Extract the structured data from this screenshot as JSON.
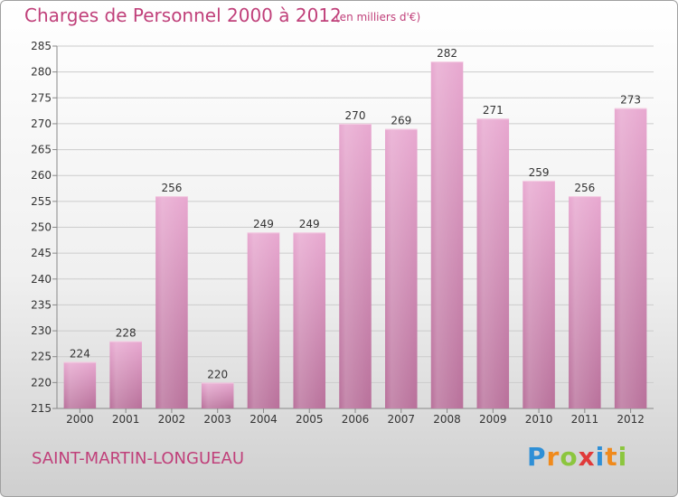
{
  "title": "Charges de Personnel 2000 à 2012",
  "subtitle": "(en milliers d'€)",
  "location": "SAINT-MARTIN-LONGUEAU",
  "logo": {
    "letters": [
      "P",
      "r",
      "o",
      "x",
      "i",
      "t",
      "i"
    ],
    "colors": [
      "#2e8fd6",
      "#f08a1c",
      "#8cc63e",
      "#e03a3a",
      "#2e8fd6",
      "#f08a1c",
      "#8cc63e"
    ]
  },
  "colors": {
    "accent": "#c0407a",
    "bar_top": "#e8a8d0",
    "bar_bottom": "#b8709a",
    "grid": "#cccccc"
  },
  "chart_data": {
    "type": "bar",
    "categories": [
      "2000",
      "2001",
      "2002",
      "2003",
      "2004",
      "2005",
      "2006",
      "2007",
      "2008",
      "2009",
      "2010",
      "2011",
      "2012"
    ],
    "values": [
      224,
      228,
      256,
      220,
      249,
      249,
      270,
      269,
      282,
      271,
      259,
      256,
      273
    ],
    "ylim": [
      215,
      285
    ],
    "yticks": [
      215,
      220,
      225,
      230,
      235,
      240,
      245,
      250,
      255,
      260,
      265,
      270,
      275,
      280,
      285
    ],
    "grid": true,
    "xlabel": "",
    "ylabel": ""
  }
}
